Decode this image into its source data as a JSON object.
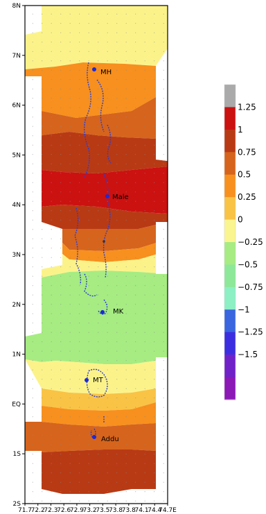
{
  "map": {
    "header_fragment": "",
    "lat_labels": [
      "8N",
      "7N",
      "6N",
      "5N",
      "4N",
      "3N",
      "2N",
      "1N",
      "EQ",
      "1S",
      "2S"
    ],
    "lon_labels": [
      "71.7",
      "72.2",
      "72.3",
      "72.6",
      "72.9",
      "73.2",
      "73.5",
      "73.8",
      "73.8",
      "74.1",
      "74.4",
      "74.7E"
    ],
    "places": [
      {
        "name": "MH"
      },
      {
        "name": "Male"
      },
      {
        "name": "MK"
      },
      {
        "name": "MT"
      },
      {
        "name": "Addu"
      }
    ]
  },
  "colorbar": {
    "labels": [
      "1.25",
      "1",
      "0.75",
      "0.5",
      "0.25",
      "0",
      "−0.25",
      "−0.5",
      "−0.75",
      "−1",
      "−1.25",
      "−1.5"
    ],
    "colors": [
      "#aaaaaa",
      "#cc1111",
      "#b83a14",
      "#d6641c",
      "#f7901e",
      "#f9c346",
      "#fbf590",
      "#a6ec82",
      "#8ee89a",
      "#8cf0c4",
      "#3a66e0",
      "#3c2ee0",
      "#7022c8",
      "#8c18b6"
    ]
  },
  "chart_data": {
    "type": "heatmap",
    "title": "",
    "xlabel": "",
    "ylabel": "",
    "y_ticks": [
      "8N",
      "7N",
      "6N",
      "5N",
      "4N",
      "3N",
      "2N",
      "1N",
      "EQ",
      "1S",
      "2S"
    ],
    "colorbar_ticks": [
      1.25,
      1,
      0.75,
      0.5,
      0.25,
      0,
      -0.25,
      -0.5,
      -0.75,
      -1,
      -1.25,
      -1.5
    ],
    "bands": [
      {
        "lat_from": 8.0,
        "lat_to": 7.4,
        "value": 0.1
      },
      {
        "lat_from": 7.4,
        "lat_to": 6.3,
        "value": 0.4
      },
      {
        "lat_from": 6.3,
        "lat_to": 5.6,
        "value": 0.6
      },
      {
        "lat_from": 5.6,
        "lat_to": 4.9,
        "value": 0.8
      },
      {
        "lat_from": 4.9,
        "lat_to": 4.0,
        "value": 1.1
      },
      {
        "lat_from": 4.0,
        "lat_to": 3.6,
        "value": 0.8
      },
      {
        "lat_from": 3.6,
        "lat_to": 3.2,
        "value": 0.6
      },
      {
        "lat_from": 3.2,
        "lat_to": 2.9,
        "value": 0.3
      },
      {
        "lat_from": 2.9,
        "lat_to": 2.7,
        "value": 0.05
      },
      {
        "lat_from": 2.7,
        "lat_to": 0.8,
        "value": -0.25
      },
      {
        "lat_from": 0.8,
        "lat_to": 0.2,
        "value": 0.1
      },
      {
        "lat_from": 0.2,
        "lat_to": -0.3,
        "value": 0.35
      },
      {
        "lat_from": -0.3,
        "lat_to": -0.8,
        "value": 0.5
      },
      {
        "lat_from": -0.8,
        "lat_to": -2.0,
        "value": 0.8
      }
    ]
  }
}
